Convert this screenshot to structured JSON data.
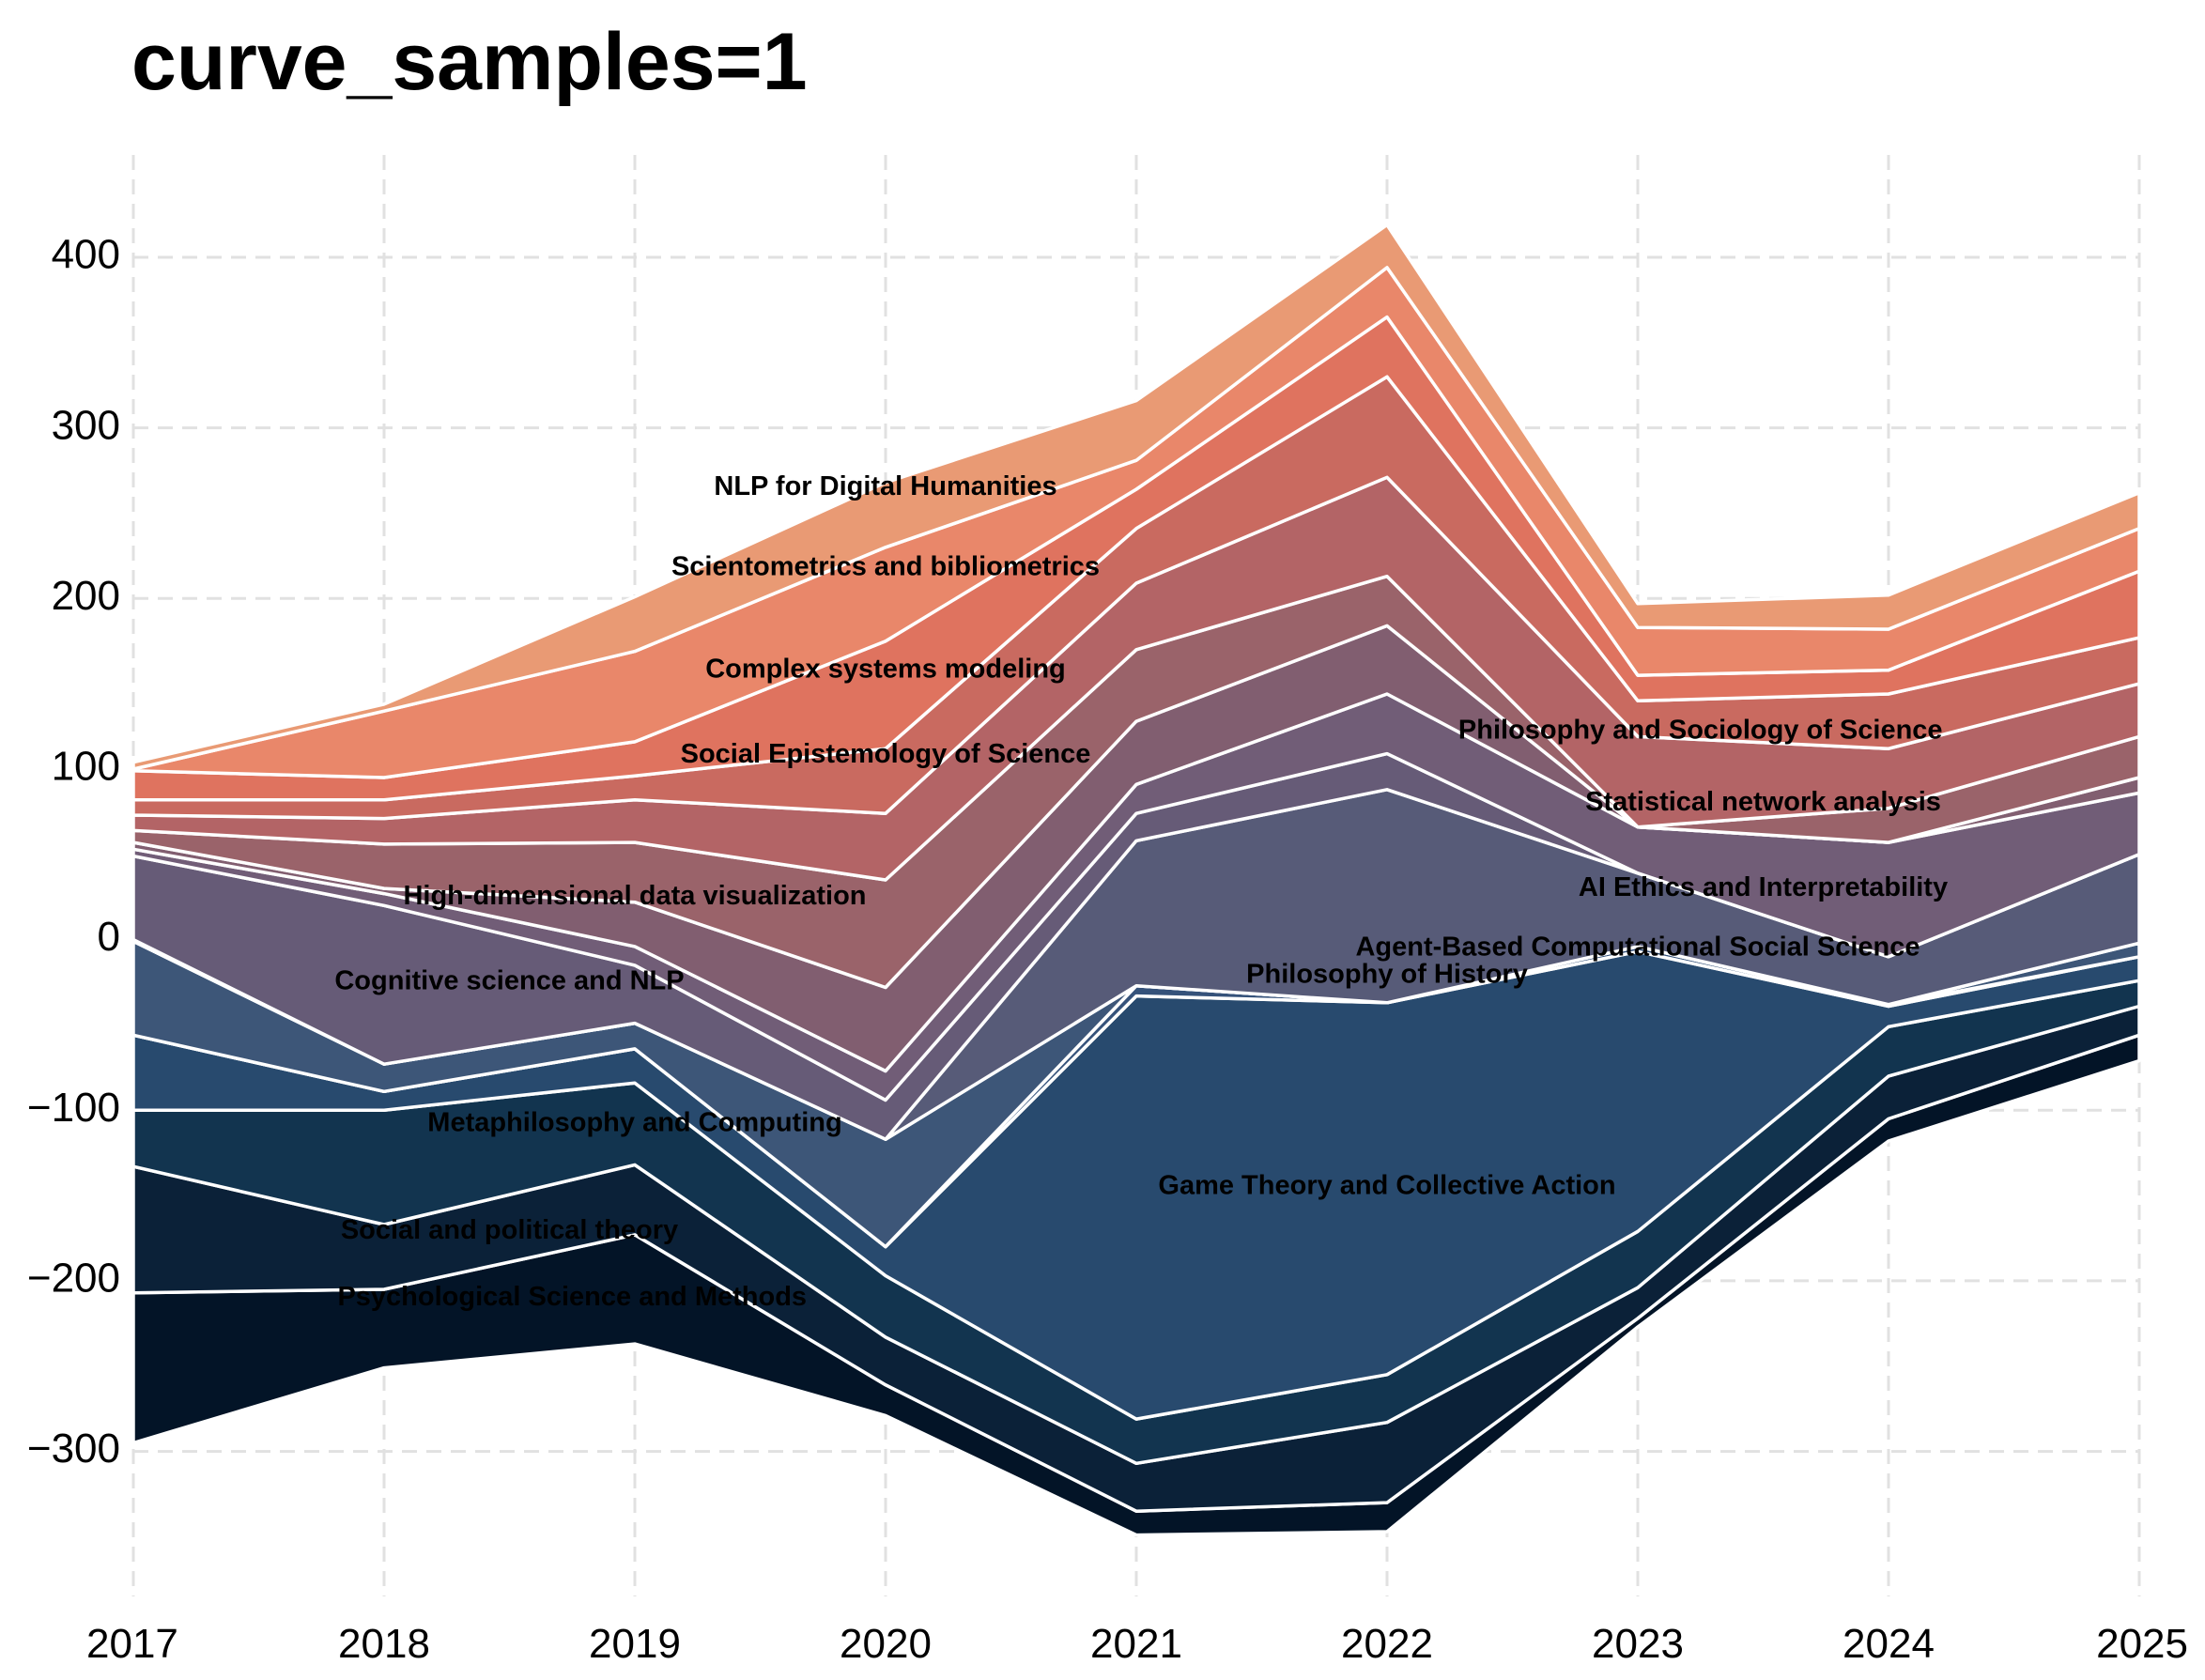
{
  "chart_data": {
    "type": "area",
    "subtype": "streamgraph",
    "title": "curve_samples=1",
    "xlabel": "",
    "ylabel": "",
    "x": [
      2017,
      2018,
      2019,
      2020,
      2021,
      2022,
      2023,
      2024,
      2025
    ],
    "xlim": [
      2017,
      2025
    ],
    "ylim": [
      -385,
      460
    ],
    "yticks": [
      -300,
      -200,
      -100,
      0,
      100,
      200,
      300,
      400
    ],
    "grid": true,
    "baseline": [
      -295,
      -251,
      -237,
      -279,
      -349,
      -347,
      -227,
      -118,
      -71
    ],
    "series": [
      {
        "name": "Psychological Science and Methods",
        "color": "#031427",
        "values": [
          88,
          46,
          64,
          18,
          14,
          17,
          5,
          13,
          15
        ]
      },
      {
        "name": "Social and political theory",
        "color": "#0b2138",
        "values": [
          74,
          38,
          41,
          28,
          28,
          47,
          18,
          25,
          17
        ]
      },
      {
        "name": "Metaphilosophy and Computing",
        "color": "#12344f",
        "values": [
          33,
          67,
          48,
          36,
          26,
          28,
          33,
          29,
          15
        ]
      },
      {
        "name": "Game Theory and Collective Action",
        "color": "#284a6e",
        "values": [
          44,
          11,
          20,
          17,
          248,
          218,
          164,
          12,
          14
        ]
      },
      {
        "name": "Philosophy of History",
        "color": "#35527a",
        "values": [
          0,
          0,
          0,
          0,
          6,
          0,
          3,
          1,
          0
        ]
      },
      {
        "name": "Cognitive science and NLP",
        "color": "#3d5678",
        "values": [
          55,
          16,
          15,
          63,
          0,
          0,
          0,
          0,
          8
        ]
      },
      {
        "name": "Agent-Based Computational Social Science",
        "color": "#575b78",
        "values": [
          1,
          0,
          0,
          0,
          85,
          125,
          43,
          28,
          52
        ]
      },
      {
        "name": "High-dimensional data visualization",
        "color": "#665b77",
        "values": [
          49,
          93,
          34,
          23,
          16,
          21,
          0,
          0,
          0
        ]
      },
      {
        "name": "AI Ethics and Interpretability",
        "color": "#715d77",
        "values": [
          4,
          7,
          11,
          17,
          17,
          35,
          27,
          67,
          36
        ]
      },
      {
        "name": "Statistical network analysis",
        "color": "#815e70",
        "values": [
          4,
          3,
          26,
          49,
          37,
          40,
          0,
          0,
          9
        ]
      },
      {
        "name": "Philosophy and Sociology of Science",
        "color": "#9a636a",
        "values": [
          7,
          26,
          35,
          63,
          42,
          29,
          0,
          20,
          24
        ]
      },
      {
        "name": "Social Epistemology of Science",
        "color": "#b36466",
        "values": [
          9,
          15,
          25,
          39,
          39,
          58,
          53,
          35,
          31
        ]
      },
      {
        "name": "Complex systems modeling",
        "color": "#c96a60",
        "values": [
          9,
          11,
          14,
          38,
          32,
          59,
          21,
          32,
          27
        ]
      },
      {
        "name": "Scientometrics and bibliometrics",
        "color": "#df735f",
        "values": [
          17,
          13,
          20,
          63,
          23,
          35,
          15,
          14,
          39
        ]
      },
      {
        "name": "NLP for Digital Humanities",
        "color": "#e9876a",
        "values": [
          1,
          39,
          53,
          55,
          17,
          29,
          28,
          24,
          25
        ]
      },
      {
        "name": "",
        "color": "#e99a74",
        "values": [
          4,
          4,
          32,
          38,
          35,
          25,
          14,
          20,
          21
        ]
      }
    ],
    "annotations": [
      {
        "series": "NLP for Digital Humanities",
        "text": "NLP for Digital Humanities",
        "x": 2020,
        "y": 265
      },
      {
        "series": "Scientometrics and bibliometrics",
        "text": "Scientometrics and bibliometrics",
        "x": 2020,
        "y": 218
      },
      {
        "series": "Complex systems modeling",
        "text": "Complex systems modeling",
        "x": 2020,
        "y": 158
      },
      {
        "series": "Social Epistemology of Science",
        "text": "Social Epistemology of Science",
        "x": 2020,
        "y": 108
      },
      {
        "series": "High-dimensional data visualization",
        "text": "High-dimensional data visualization",
        "x": 2019,
        "y": 25
      },
      {
        "series": "Cognitive science and NLP",
        "text": "Cognitive science and NLP",
        "x": 2018.5,
        "y": -25
      },
      {
        "series": "Metaphilosophy and Computing",
        "text": "Metaphilosophy and Computing",
        "x": 2019,
        "y": -108
      },
      {
        "series": "Social and political theory",
        "text": "Social and political theory",
        "x": 2018.5,
        "y": -171
      },
      {
        "series": "Psychological Science and Methods",
        "text": "Psychological Science and Methods",
        "x": 2018.75,
        "y": -210
      },
      {
        "series": "Game Theory and Collective Action",
        "text": "Game Theory and Collective Action",
        "x": 2022,
        "y": -145
      },
      {
        "series": "Philosophy of History",
        "text": "Philosophy of History",
        "x": 2022,
        "y": -21
      },
      {
        "series": "Agent-Based Computational Social Science",
        "text": "Agent-Based Computational Social Science",
        "x": 2023,
        "y": -5
      },
      {
        "series": "AI Ethics and Interpretability",
        "text": "AI Ethics and Interpretability",
        "x": 2023.5,
        "y": 30
      },
      {
        "series": "Statistical network analysis",
        "text": "Statistical network analysis",
        "x": 2023.5,
        "y": 80
      },
      {
        "series": "Philosophy and Sociology of Science",
        "text": "Philosophy and Sociology of Science",
        "x": 2023.25,
        "y": 122
      }
    ]
  }
}
